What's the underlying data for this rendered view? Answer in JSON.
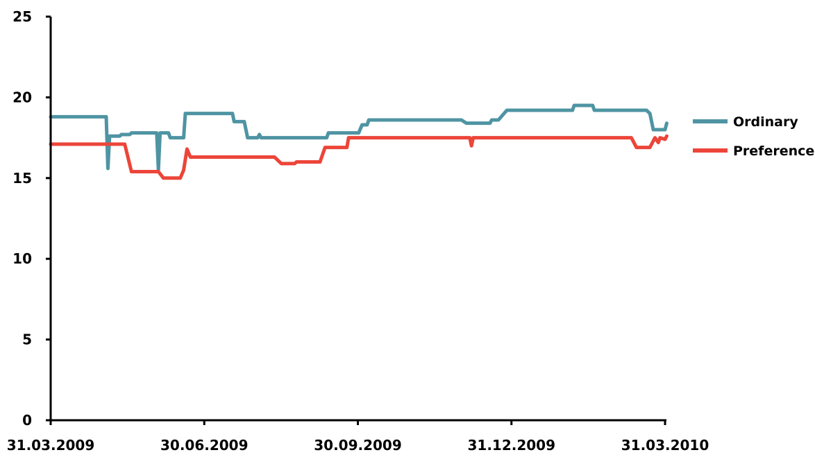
{
  "chart_data": {
    "type": "line",
    "x_ticks": [
      "31.03.2009",
      "30.06.2009",
      "30.09.2009",
      "31.12.2009",
      "31.03.2010"
    ],
    "y_ticks": [
      "0",
      "5",
      "10",
      "15",
      "20",
      "25"
    ],
    "xlim": [
      "2009-03-31",
      "2010-03-31"
    ],
    "ylim": [
      0,
      25
    ],
    "grid": false,
    "legend_position": "right",
    "series": [
      {
        "name": "Ordinary",
        "color": "#4f94a3",
        "points": [
          [
            "2009-03-31",
            18.8
          ],
          [
            "2009-05-03",
            18.8
          ],
          [
            "2009-05-04",
            15.6
          ],
          [
            "2009-05-05",
            17.6
          ],
          [
            "2009-05-11",
            17.6
          ],
          [
            "2009-05-12",
            17.7
          ],
          [
            "2009-05-17",
            17.7
          ],
          [
            "2009-05-18",
            17.8
          ],
          [
            "2009-06-02",
            17.8
          ],
          [
            "2009-06-03",
            15.5
          ],
          [
            "2009-06-04",
            17.8
          ],
          [
            "2009-06-09",
            17.8
          ],
          [
            "2009-06-10",
            17.5
          ],
          [
            "2009-06-18",
            17.5
          ],
          [
            "2009-06-19",
            19.0
          ],
          [
            "2009-07-17",
            19.0
          ],
          [
            "2009-07-18",
            18.5
          ],
          [
            "2009-07-24",
            18.5
          ],
          [
            "2009-07-26",
            17.5
          ],
          [
            "2009-08-01",
            17.5
          ],
          [
            "2009-08-02",
            17.7
          ],
          [
            "2009-08-03",
            17.5
          ],
          [
            "2009-09-11",
            17.5
          ],
          [
            "2009-09-12",
            17.8
          ],
          [
            "2009-09-30",
            17.8
          ],
          [
            "2009-10-02",
            18.3
          ],
          [
            "2009-10-05",
            18.3
          ],
          [
            "2009-10-06",
            18.6
          ],
          [
            "2009-11-30",
            18.6
          ],
          [
            "2009-12-03",
            18.4
          ],
          [
            "2009-12-17",
            18.4
          ],
          [
            "2009-12-18",
            18.6
          ],
          [
            "2009-12-22",
            18.6
          ],
          [
            "2009-12-27",
            19.2
          ],
          [
            "2010-02-04",
            19.2
          ],
          [
            "2010-02-05",
            19.5
          ],
          [
            "2010-02-16",
            19.5
          ],
          [
            "2010-02-17",
            19.2
          ],
          [
            "2010-03-20",
            19.2
          ],
          [
            "2010-03-22",
            19.0
          ],
          [
            "2010-03-24",
            18.0
          ],
          [
            "2010-03-31",
            18.0
          ],
          [
            "2010-04-01",
            18.4
          ]
        ]
      },
      {
        "name": "Preference",
        "color": "#ec4539",
        "points": [
          [
            "2009-03-31",
            17.1
          ],
          [
            "2009-05-14",
            17.1
          ],
          [
            "2009-05-18",
            15.4
          ],
          [
            "2009-06-03",
            15.4
          ],
          [
            "2009-06-06",
            15.0
          ],
          [
            "2009-06-16",
            15.0
          ],
          [
            "2009-06-18",
            15.5
          ],
          [
            "2009-06-20",
            16.8
          ],
          [
            "2009-06-22",
            16.3
          ],
          [
            "2009-08-11",
            16.3
          ],
          [
            "2009-08-15",
            15.9
          ],
          [
            "2009-08-23",
            15.9
          ],
          [
            "2009-08-24",
            16.0
          ],
          [
            "2009-09-07",
            16.0
          ],
          [
            "2009-09-10",
            16.9
          ],
          [
            "2009-09-23",
            16.9
          ],
          [
            "2009-09-24",
            17.5
          ],
          [
            "2009-12-05",
            17.5
          ],
          [
            "2009-12-06",
            17.0
          ],
          [
            "2009-12-07",
            17.5
          ],
          [
            "2010-03-11",
            17.5
          ],
          [
            "2010-03-14",
            16.9
          ],
          [
            "2010-03-22",
            16.9
          ],
          [
            "2010-03-25",
            17.5
          ],
          [
            "2010-03-27",
            17.2
          ],
          [
            "2010-03-28",
            17.5
          ],
          [
            "2010-03-31",
            17.4
          ],
          [
            "2010-04-01",
            17.6
          ]
        ]
      }
    ]
  }
}
